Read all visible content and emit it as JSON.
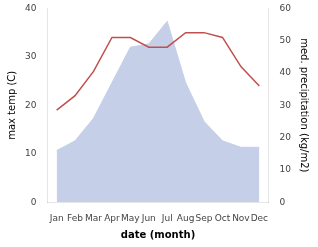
{
  "chart_data": {
    "type": "line",
    "categories": [
      "Jan",
      "Feb",
      "Mar",
      "Apr",
      "May",
      "Jun",
      "Jul",
      "Aug",
      "Sep",
      "Oct",
      "Nov",
      "Dec"
    ],
    "xlabel": "date (month)",
    "ylabel": "max temp (C)",
    "y2label": "med. precipitation (kg/m2)",
    "series": [
      {
        "type": "area",
        "color": "#c5cfe8",
        "axis": "y2",
        "values": [
          16,
          19,
          26,
          37,
          48,
          49,
          56,
          37,
          25,
          19,
          17,
          17
        ]
      },
      {
        "type": "line",
        "color": "#c0504d",
        "values": [
          19,
          22,
          27,
          34,
          34,
          32,
          32,
          35,
          35,
          34,
          28,
          24
        ]
      }
    ],
    "ylim": [
      0,
      40
    ],
    "yticks": [
      0,
      10,
      20,
      30,
      40
    ],
    "y2lim": [
      0,
      60
    ],
    "y2ticks": [
      0,
      10,
      20,
      30,
      40,
      50,
      60
    ],
    "grid": false
  }
}
